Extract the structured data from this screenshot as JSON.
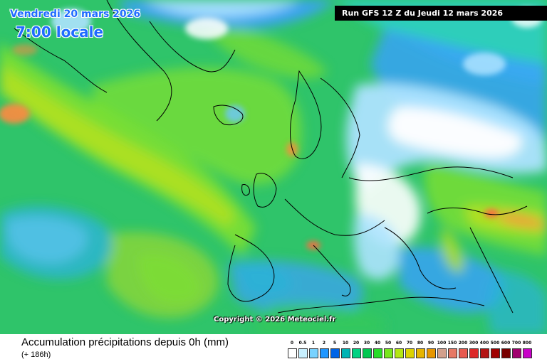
{
  "header": {
    "date_line": "Vendredi 20 mars 2026",
    "time_line": "7:00 locale",
    "run_info": "Run GFS 12 Z du Jeudi 12 mars 2026"
  },
  "copyright": "Copyright © 2026 Meteociel.fr",
  "footer": {
    "title": "Accumulation précipitations depuis 0h (mm)",
    "subtitle": "(+ 186h)"
  },
  "legend": {
    "ticks": [
      "0",
      "0.5",
      "1",
      "2",
      "5",
      "10",
      "20",
      "30",
      "40",
      "50",
      "60",
      "70",
      "80",
      "90",
      "100",
      "150",
      "200",
      "300",
      "400",
      "500",
      "600",
      "700",
      "800"
    ],
    "colors": [
      "#ffffff",
      "#c8f0ff",
      "#78d2ff",
      "#1e96ff",
      "#0064e6",
      "#00b4b4",
      "#00d282",
      "#00c850",
      "#28dc28",
      "#78e61e",
      "#b4e614",
      "#dcd200",
      "#e6b400",
      "#e69600",
      "#d2a08c",
      "#e67864",
      "#e65a50",
      "#dc2828",
      "#b41414",
      "#a00000",
      "#780000",
      "#a0006e",
      "#c800c8"
    ]
  },
  "map": {
    "base_color": "#2fc46a",
    "ocean_region": "North Atlantic / Europe",
    "colors": {
      "white_dry": "#ffffff",
      "light_blue": "#aee3ff",
      "blue": "#3aa0ff",
      "cyan": "#30d0c8",
      "green": "#34c85a",
      "lime": "#7ee030",
      "yellow_green": "#b8e020",
      "orange": "#ff8a40",
      "coast": "#000000"
    }
  }
}
